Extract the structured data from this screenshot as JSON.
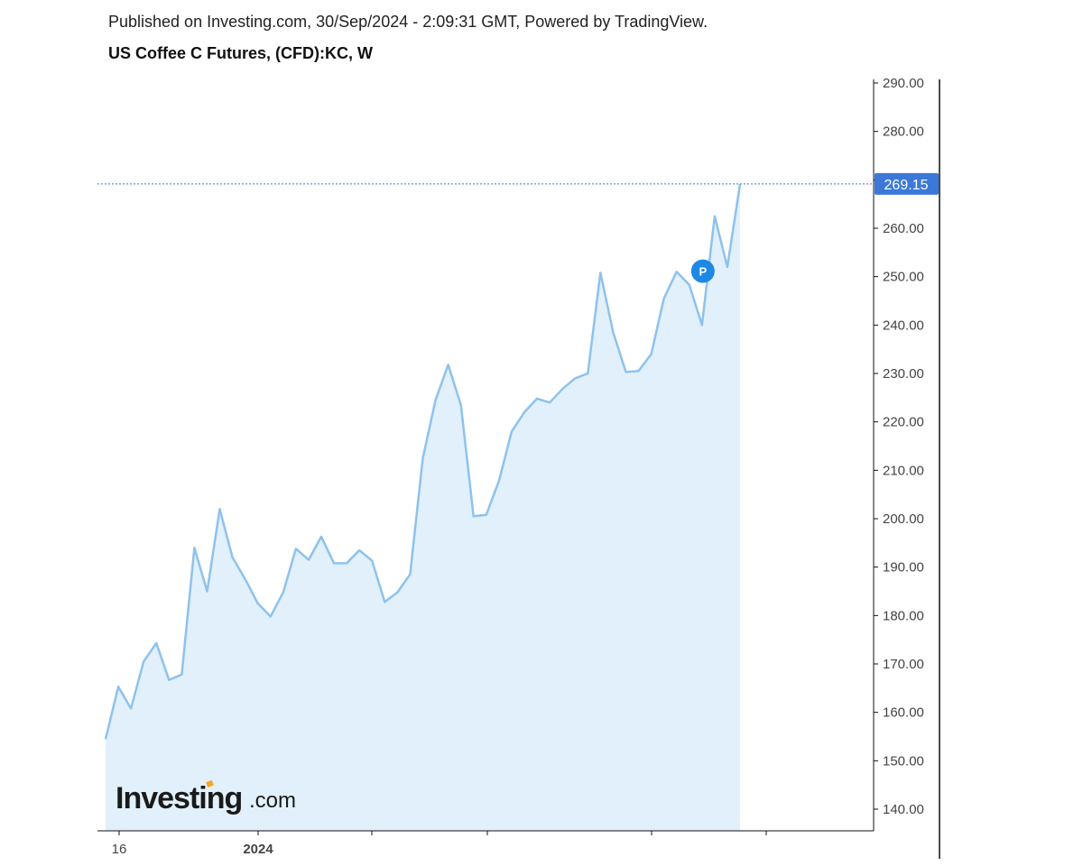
{
  "header": {
    "published": "Published on Investing.com, 30/Sep/2024 - 2:09:31 GMT, Powered by TradingView.",
    "symbol": "US Coffee C Futures, (CFD):KC, W"
  },
  "logo": {
    "main": "Investing",
    "sub": ".com"
  },
  "marker": {
    "label": "P",
    "color": "#1e88e5",
    "week_index": 47,
    "value": 251.5
  },
  "colors": {
    "line": "#8ec2ee",
    "area": "#e1f0fa",
    "price_badge": "#3b78d8",
    "axis": "#111111",
    "price_line": "#3b78d8"
  },
  "chart_data": {
    "type": "area",
    "title": "US Coffee C Futures, (CFD):KC, W",
    "ylim": [
      135,
      292
    ],
    "y_ticks": [
      "140.00",
      "150.00",
      "160.00",
      "170.00",
      "180.00",
      "190.00",
      "200.00",
      "210.00",
      "220.00",
      "230.00",
      "240.00",
      "250.00",
      "260.00",
      "270.00",
      "280.00",
      "290.00"
    ],
    "x_labels": [
      "16",
      "2024"
    ],
    "last_price": "269.15",
    "last_value": 269.15,
    "values": [
      154.5,
      165.3,
      160.8,
      170.5,
      174.3,
      166.7,
      167.8,
      194.0,
      185.0,
      202.0,
      192.0,
      187.5,
      182.5,
      179.8,
      184.8,
      193.8,
      191.5,
      196.3,
      190.8,
      190.8,
      193.5,
      191.3,
      182.8,
      184.8,
      188.5,
      212.5,
      224.5,
      231.8,
      223.5,
      200.5,
      200.8,
      207.8,
      218.0,
      222.0,
      224.8,
      224.0,
      226.8,
      229.0,
      230.0,
      250.8,
      238.5,
      230.3,
      230.5,
      234.0,
      245.5,
      251.0,
      248.3,
      240.0,
      262.5,
      252.0,
      269.15
    ]
  }
}
